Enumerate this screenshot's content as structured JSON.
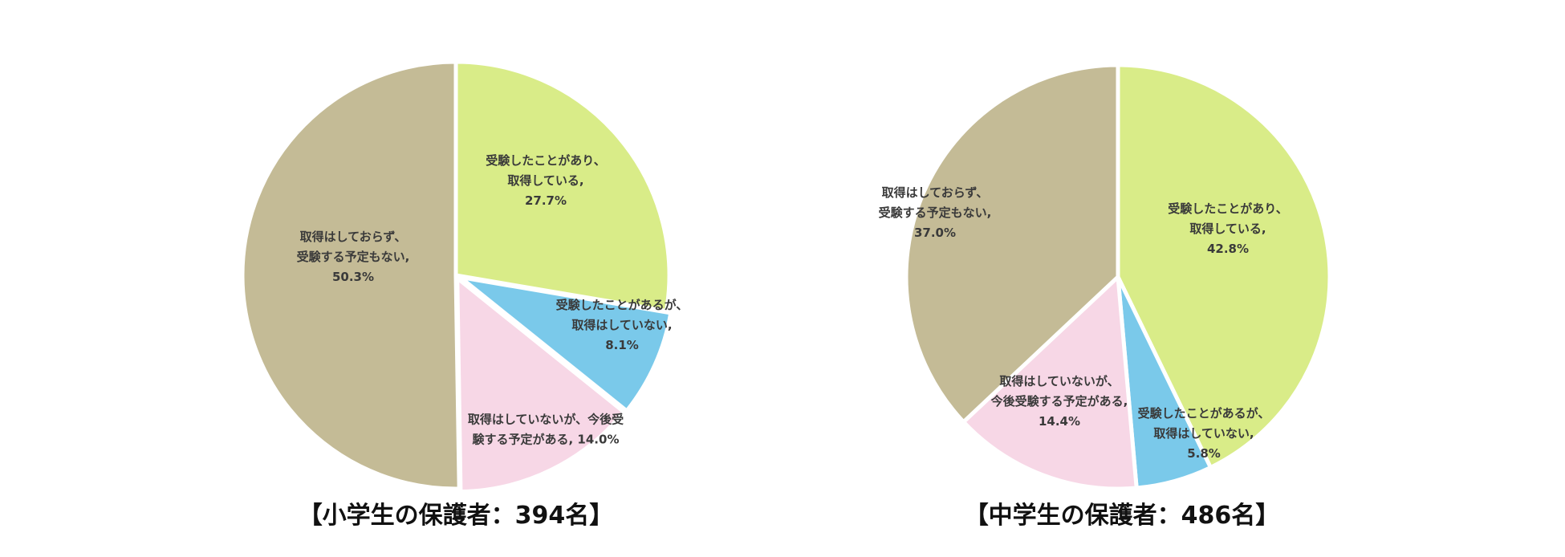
{
  "chart_data": [
    {
      "type": "pie",
      "title": "【小学生の保護者：394名】",
      "slices": [
        {
          "label_lines": [
            "受験したことがあり、",
            "取得している,",
            "27.7%"
          ],
          "value": 27.7,
          "color": "#d9ec88"
        },
        {
          "label_lines": [
            "受験したことがあるが、",
            "取得はしていない,",
            "8.1%"
          ],
          "value": 8.1,
          "color": "#7ac9ea"
        },
        {
          "label_lines": [
            "取得はしていないが、今後受",
            "験する予定がある, 14.0%"
          ],
          "value": 14.0,
          "color": "#f7d7e6"
        },
        {
          "label_lines": [
            "取得はしておらず、",
            "受験する予定もない,",
            "50.3%"
          ],
          "value": 50.3,
          "color": "#c4bb96"
        }
      ]
    },
    {
      "type": "pie",
      "title": "【中学生の保護者：486名】",
      "slices": [
        {
          "label_lines": [
            "受験したことがあり、",
            "取得している,",
            "42.8%"
          ],
          "value": 42.8,
          "color": "#d9ec88"
        },
        {
          "label_lines": [
            "受験したことがあるが、",
            "取得はしていない,",
            "5.8%"
          ],
          "value": 5.8,
          "color": "#7ac9ea"
        },
        {
          "label_lines": [
            "取得はしていないが、",
            "今後受験する予定がある,",
            "14.4%"
          ],
          "value": 14.4,
          "color": "#f7d7e6"
        },
        {
          "label_lines": [
            "取得はしておらず、",
            "受験する予定もない,",
            "37.0%"
          ],
          "value": 37.0,
          "color": "#c4bb96"
        }
      ]
    }
  ]
}
